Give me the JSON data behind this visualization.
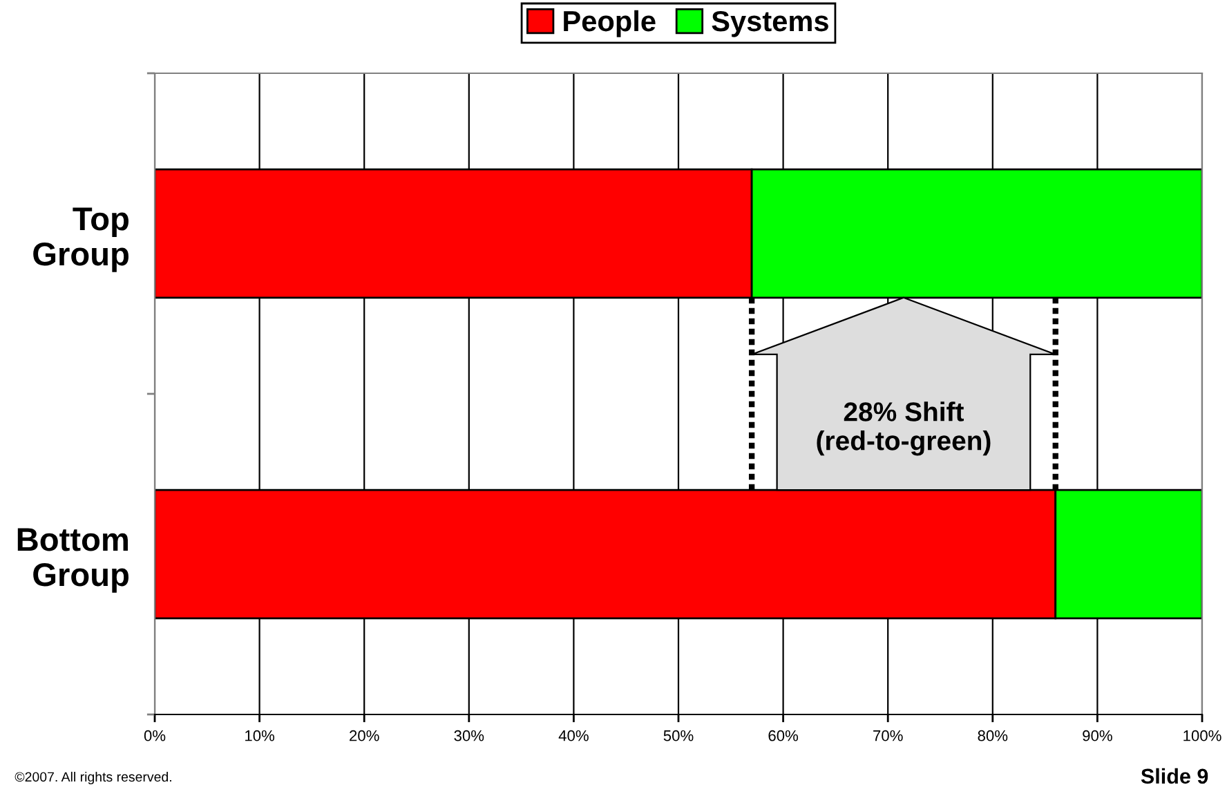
{
  "chart_data": {
    "type": "bar",
    "orientation": "horizontal",
    "stacked": true,
    "categories": [
      "Top Group",
      "Bottom Group"
    ],
    "series": [
      {
        "name": "People",
        "color": "#ff0000",
        "values": [
          57,
          86
        ]
      },
      {
        "name": "Systems",
        "color": "#00ff00",
        "values": [
          43,
          14
        ]
      }
    ],
    "xlim": [
      0,
      100
    ],
    "xticks": [
      {
        "value": 0,
        "label": "0%"
      },
      {
        "value": 10,
        "label": "10%"
      },
      {
        "value": 20,
        "label": "20%"
      },
      {
        "value": 30,
        "label": "30%"
      },
      {
        "value": 40,
        "label": "40%"
      },
      {
        "value": 50,
        "label": "50%"
      },
      {
        "value": 60,
        "label": "60%"
      },
      {
        "value": 70,
        "label": "70%"
      },
      {
        "value": 80,
        "label": "80%"
      },
      {
        "value": 90,
        "label": "90%"
      },
      {
        "value": 100,
        "label": "100%"
      }
    ],
    "grid": "x",
    "legend": "top",
    "ref_lines": [
      {
        "axis": "x",
        "value": 57,
        "color": "#000000",
        "line_style": "dotted"
      },
      {
        "axis": "x",
        "value": 86,
        "color": "#000000",
        "line_style": "dotted"
      }
    ],
    "annotations": [
      "28% Shift\n(red-to-green)",
      "©2007. All rights reserved.",
      "Slide 9"
    ]
  }
}
